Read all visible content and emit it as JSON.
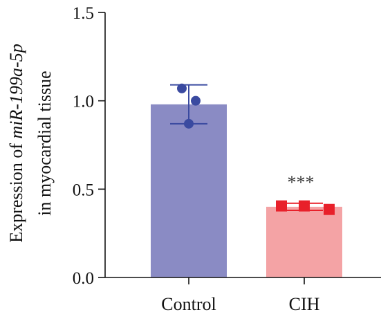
{
  "chart_data": {
    "type": "bar",
    "categories": [
      "Control",
      "CIH"
    ],
    "values": [
      0.98,
      0.4
    ],
    "error": [
      0.11,
      0.02
    ],
    "points": [
      [
        1.07,
        1.0,
        0.87
      ],
      [
        0.405,
        0.405,
        0.385
      ]
    ],
    "ylabel_line1_prefix": "Expression of ",
    "ylabel_line1_italic": "miR-199a-5p",
    "ylabel_line2": "in myocardial tissue",
    "ylim": [
      0,
      1.5
    ],
    "yticks": [
      "0.0",
      "0.5",
      "1.0",
      "1.5"
    ],
    "annotation": "***",
    "colors": {
      "control_bar": "#8a8bc4",
      "control_point": "#3a4aa0",
      "cih_bar": "#f4a3a5",
      "cih_point": "#e8202a"
    }
  }
}
